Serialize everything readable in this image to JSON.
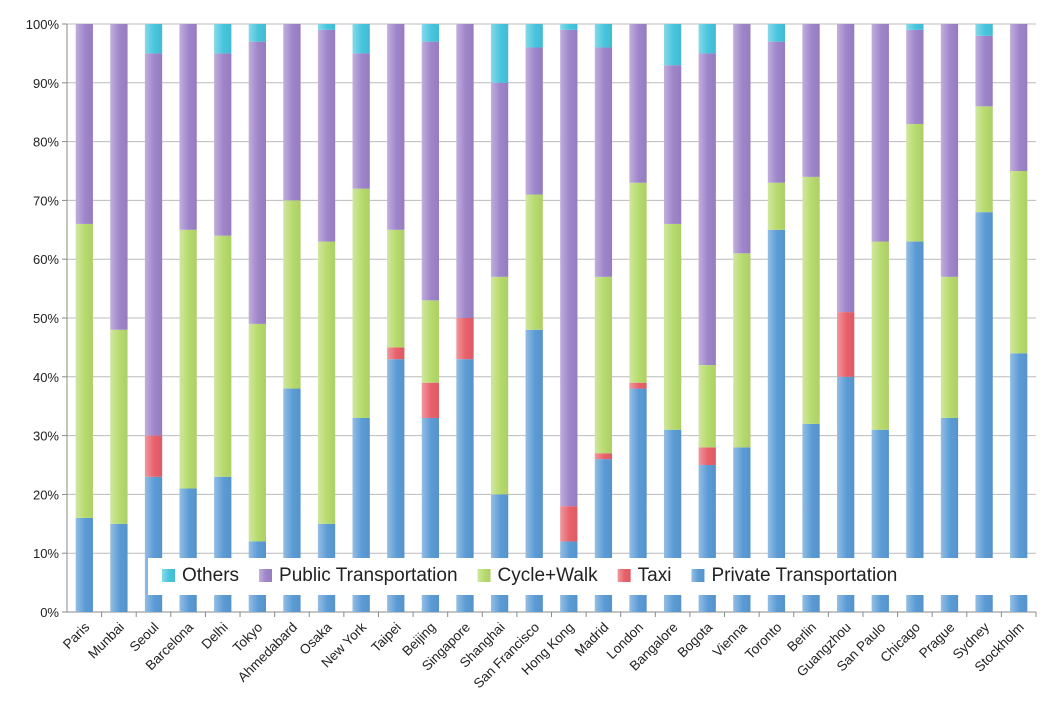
{
  "chart_data": {
    "type": "bar",
    "stacked": true,
    "normalized": true,
    "categories": [
      "Paris",
      "Munbai",
      "Seoul",
      "Barcelona",
      "Delhi",
      "Tokyo",
      "Ahmedabard",
      "Osaka",
      "New York",
      "Taipei",
      "Beijing",
      "Singapore",
      "Shanghai",
      "San Francisco",
      "Hong Kong",
      "Madrid",
      "London",
      "Bangalore",
      "Bogota",
      "Vienna",
      "Toronto",
      "Berlin",
      "Guangzhou",
      "San Paulo",
      "Chicago",
      "Prague",
      "Sydney",
      "Stockholm"
    ],
    "series": [
      {
        "name": "Private Transportation",
        "color": "#5b9bd5",
        "values": [
          16,
          15,
          23,
          21,
          23,
          12,
          38,
          15,
          33,
          43,
          33,
          43,
          20,
          48,
          12,
          26,
          38,
          31,
          25,
          28,
          65,
          32,
          40,
          31,
          63,
          33,
          68,
          44
        ]
      },
      {
        "name": "Taxi",
        "color": "#e8606a",
        "values": [
          0,
          0,
          7,
          0,
          0,
          0,
          0,
          0,
          0,
          2,
          6,
          7,
          0,
          0,
          6,
          1,
          1,
          0,
          3,
          0,
          0,
          0,
          11,
          0,
          0,
          0,
          0,
          0
        ]
      },
      {
        "name": "Cycle+Walk",
        "color": "#b6da6c",
        "values": [
          50,
          33,
          0,
          44,
          41,
          37,
          32,
          48,
          39,
          20,
          14,
          0,
          37,
          23,
          0,
          30,
          34,
          35,
          14,
          33,
          8,
          42,
          0,
          32,
          20,
          24,
          18,
          31
        ]
      },
      {
        "name": "Public Transportation",
        "color": "#9e84c9",
        "values": [
          34,
          52,
          65,
          35,
          31,
          48,
          30,
          36,
          23,
          35,
          44,
          50,
          33,
          25,
          81,
          39,
          27,
          27,
          53,
          39,
          24,
          26,
          49,
          37,
          16,
          43,
          12,
          25
        ]
      },
      {
        "name": "Others",
        "color": "#47c5dd",
        "values": [
          0,
          0,
          5,
          0,
          5,
          3,
          0,
          1,
          5,
          0,
          3,
          0,
          10,
          4,
          1,
          4,
          0,
          7,
          5,
          0,
          3,
          0,
          0,
          0,
          1,
          0,
          2,
          0
        ]
      }
    ],
    "ylim": [
      0,
      100
    ],
    "yticks": [
      "0%",
      "10%",
      "20%",
      "30%",
      "40%",
      "50%",
      "60%",
      "70%",
      "80%",
      "90%",
      "100%"
    ],
    "grid": true,
    "legend": {
      "position": "bottom-inside",
      "order": [
        "Others",
        "Public Transportation",
        "Cycle+Walk",
        "Taxi",
        "Private Transportation"
      ]
    }
  }
}
